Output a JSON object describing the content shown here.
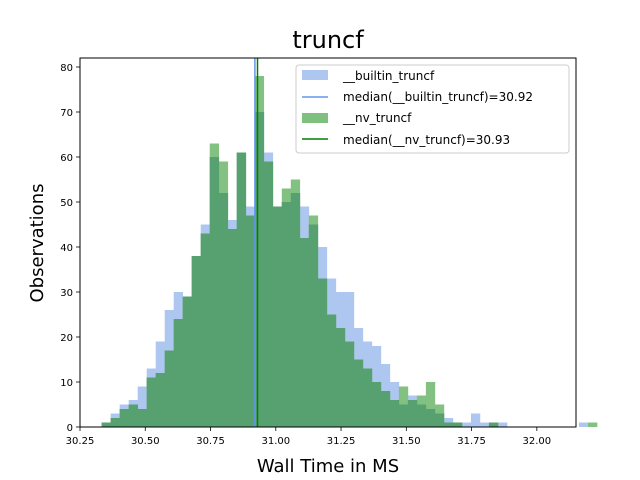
{
  "chart_data": {
    "type": "histogram",
    "title": "truncf",
    "xlabel": "Wall Time in MS",
    "ylabel": "Observations",
    "xlim": [
      30.25,
      32.15
    ],
    "ylim": [
      0,
      82
    ],
    "xticks": [
      30.25,
      30.5,
      30.75,
      31.0,
      31.25,
      31.5,
      31.75,
      32.0
    ],
    "xtick_labels": [
      "30.25",
      "30.50",
      "30.75",
      "31.00",
      "31.25",
      "31.50",
      "31.75",
      "32.00"
    ],
    "yticks": [
      0,
      10,
      20,
      30,
      40,
      50,
      60,
      70,
      80
    ],
    "ytick_labels": [
      "0",
      "10",
      "20",
      "30",
      "40",
      "50",
      "60",
      "70",
      "80"
    ],
    "bin_start": 30.333,
    "bin_width": 0.0345,
    "legend_position": "upper right",
    "series": [
      {
        "name": "__builtin_truncf",
        "color": "#aec7f0",
        "median": 30.92,
        "median_label": "median(__builtin_truncf)=30.92",
        "median_color": "#6495ed",
        "counts": [
          1,
          3,
          5,
          6,
          9,
          13,
          19,
          26,
          30,
          29,
          38,
          45,
          60,
          52,
          46,
          61,
          49,
          70,
          61,
          49,
          50,
          52,
          49,
          45,
          40,
          33,
          30,
          30,
          22,
          19,
          18,
          14,
          10,
          5,
          7,
          5,
          4,
          3,
          2,
          1,
          1,
          3,
          1,
          1,
          1,
          0,
          0,
          0,
          0,
          0,
          0,
          0,
          0,
          1,
          0
        ]
      },
      {
        "name": "__nv_truncf",
        "color": "#7fc07f",
        "median": 30.93,
        "median_label": "median(__nv_truncf)=30.93",
        "median_color": "#008000",
        "counts": [
          1,
          2,
          4,
          5,
          4,
          11,
          12,
          17,
          24,
          29,
          38,
          43,
          63,
          59,
          44,
          61,
          47,
          78,
          59,
          49,
          53,
          55,
          42,
          47,
          33,
          25,
          22,
          19,
          15,
          13,
          10,
          8,
          6,
          9,
          6,
          7,
          10,
          5,
          1,
          1,
          0,
          0,
          0,
          1,
          0,
          0,
          0,
          0,
          0,
          0,
          0,
          0,
          0,
          0,
          1
        ]
      }
    ]
  }
}
